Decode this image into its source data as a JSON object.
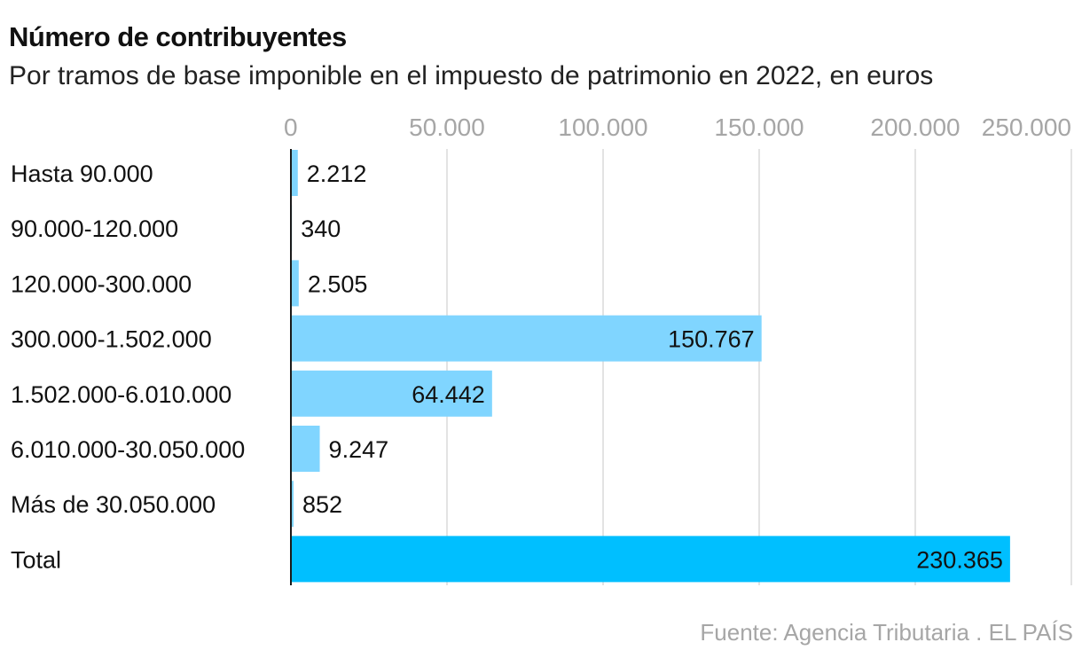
{
  "title": "Número de contribuyentes",
  "subtitle": "Por tramos de base imponible en el impuesto de patrimonio en 2022, en euros",
  "source": "Fuente: Agencia Tributaria . EL PAÍS",
  "colors": {
    "bar": "#80d5ff",
    "total_bar": "#00bfff",
    "grid": "#e3e3e3",
    "axis": "#1a1a1a"
  },
  "chart_data": {
    "type": "bar",
    "orientation": "horizontal",
    "categories": [
      "Hasta 90.000",
      "90.000-120.000",
      "120.000-300.000",
      "300.000-1.502.000",
      "1.502.000-6.010.000",
      "6.010.000-30.050.000",
      "Más de 30.050.000",
      "Total"
    ],
    "values": [
      2212,
      340,
      2505,
      150767,
      64442,
      9247,
      852,
      230365
    ],
    "value_labels": [
      "2.212",
      "340",
      "2.505",
      "150.767",
      "64.442",
      "9.247",
      "852",
      "230.365"
    ],
    "xticks": [
      0,
      50000,
      100000,
      150000,
      200000,
      250000
    ],
    "xtick_labels": [
      "0",
      "50.000",
      "100.000",
      "150.000",
      "200.000",
      "250.000"
    ],
    "xlim": [
      0,
      250000
    ],
    "grid": true
  }
}
